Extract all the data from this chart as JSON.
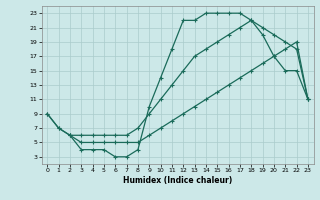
{
  "xlabel": "Humidex (Indice chaleur)",
  "bg_color": "#cce8e8",
  "grid_color": "#aacccc",
  "line_color": "#1a6b5a",
  "xlim": [
    -0.5,
    23.5
  ],
  "ylim": [
    2,
    24
  ],
  "xticks": [
    0,
    1,
    2,
    3,
    4,
    5,
    6,
    7,
    8,
    9,
    10,
    11,
    12,
    13,
    14,
    15,
    16,
    17,
    18,
    19,
    20,
    21,
    22,
    23
  ],
  "yticks": [
    3,
    5,
    7,
    9,
    11,
    13,
    15,
    17,
    19,
    21,
    23
  ],
  "line1_x": [
    0,
    1,
    2,
    3,
    4,
    5,
    6,
    7,
    8,
    9,
    10,
    11,
    12,
    13,
    14,
    15,
    16,
    17,
    18,
    19,
    20,
    21,
    22,
    23
  ],
  "line1_y": [
    9,
    7,
    6,
    4,
    4,
    4,
    3,
    3,
    4,
    10,
    14,
    18,
    22,
    22,
    23,
    23,
    23,
    23,
    22,
    20,
    17,
    15,
    15,
    11
  ],
  "line2_x": [
    0,
    1,
    2,
    3,
    4,
    5,
    6,
    7,
    8,
    9,
    10,
    11,
    12,
    13,
    14,
    15,
    16,
    17,
    18,
    19,
    20,
    21,
    22,
    23
  ],
  "line2_y": [
    9,
    7,
    6,
    6,
    6,
    6,
    6,
    6,
    7,
    9,
    11,
    13,
    15,
    17,
    18,
    19,
    20,
    21,
    22,
    21,
    20,
    19,
    18,
    11
  ],
  "line3_x": [
    2,
    3,
    4,
    5,
    6,
    7,
    8,
    9,
    10,
    11,
    12,
    13,
    14,
    15,
    16,
    17,
    18,
    19,
    20,
    21,
    22,
    23
  ],
  "line3_y": [
    6,
    5,
    5,
    5,
    5,
    5,
    5,
    6,
    7,
    8,
    9,
    10,
    11,
    12,
    13,
    14,
    15,
    16,
    17,
    18,
    19,
    11
  ]
}
